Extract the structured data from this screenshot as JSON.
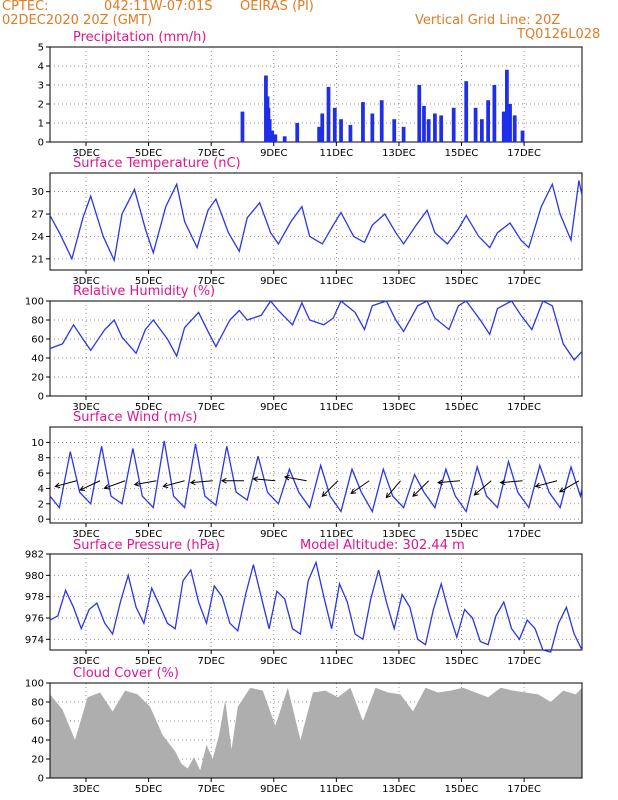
{
  "header": {
    "center_label": "CPTEC:",
    "coords": "042:11W-07:01S",
    "station": "OEIRAS (PI)",
    "run_time": "02DEC2020 20Z (GMT)",
    "grid_note": "Vertical Grid Line: 20Z",
    "model_code": "TQ0126L028"
  },
  "colors": {
    "header_text": "#e07b26",
    "panel_title": "#e4148c",
    "series_line": "#2b36e6",
    "precip_bar": "#1f2ee8",
    "cloud_fill": "#aaaaaa",
    "wind_arrow": "#000000"
  },
  "chart_data": [
    {
      "type": "bar",
      "title": "Precipitation (mm/h)",
      "x_ticks": [
        "3DEC",
        "5DEC",
        "7DEC",
        "9DEC",
        "11DEC",
        "13DEC",
        "15DEC",
        "17DEC"
      ],
      "ylim": [
        0,
        5
      ],
      "y_ticks": [
        "0",
        "1",
        "2",
        "3",
        "4",
        "5"
      ],
      "grid": true,
      "day_offsets": [
        6.15,
        6.9,
        6.95,
        6.98,
        7.02,
        7.1,
        7.2,
        7.5,
        7.9,
        8.6,
        8.7,
        8.9,
        9.1,
        9.3,
        9.6,
        10.0,
        10.3,
        10.6,
        11.0,
        11.3,
        11.8,
        11.95,
        12.1,
        12.3,
        12.5,
        12.9,
        13.3,
        13.6,
        13.8,
        14.0,
        14.2,
        14.5,
        14.6,
        14.7,
        14.85,
        15.1
      ],
      "values": [
        1.6,
        3.5,
        2.4,
        1.8,
        1.2,
        0.6,
        0.4,
        0.3,
        1.0,
        0.8,
        1.5,
        2.9,
        1.8,
        1.2,
        0.9,
        2.1,
        1.5,
        2.2,
        1.2,
        0.8,
        3.0,
        1.9,
        1.2,
        1.5,
        1.4,
        1.8,
        3.2,
        1.8,
        1.2,
        2.2,
        3.0,
        1.6,
        3.8,
        2.0,
        1.4,
        0.6
      ]
    },
    {
      "type": "line",
      "title": "Surface Temperature (nC)",
      "x_ticks": [
        "3DEC",
        "5DEC",
        "7DEC",
        "9DEC",
        "11DEC",
        "13DEC",
        "15DEC",
        "17DEC"
      ],
      "ylim": [
        19.5,
        32.5
      ],
      "y_ticks": [
        "21",
        "24",
        "27",
        "30"
      ],
      "grid": true,
      "day_offsets": [
        0,
        0.3,
        0.7,
        1.05,
        1.3,
        1.7,
        2.05,
        2.3,
        2.7,
        3.05,
        3.3,
        3.7,
        4.05,
        4.3,
        4.7,
        5.05,
        5.3,
        5.7,
        6.05,
        6.3,
        6.7,
        7.05,
        7.3,
        7.7,
        8.05,
        8.3,
        8.7,
        9.05,
        9.3,
        9.7,
        10.05,
        10.3,
        10.7,
        11.05,
        11.3,
        11.7,
        12.05,
        12.3,
        12.7,
        13.05,
        13.3,
        13.7,
        14.05,
        14.3,
        14.7,
        15.05,
        15.3,
        15.7,
        16.05,
        16.3,
        16.65,
        16.9,
        17.0
      ],
      "values": [
        26.8,
        24.5,
        21.0,
        26.5,
        29.4,
        24.0,
        20.8,
        27.0,
        30.3,
        25.0,
        21.8,
        28.0,
        31.0,
        26.0,
        22.5,
        27.5,
        29.0,
        24.5,
        22.0,
        26.5,
        28.5,
        24.5,
        23.0,
        26.0,
        28.0,
        24.0,
        23.0,
        25.5,
        27.2,
        24.0,
        23.2,
        25.5,
        27.0,
        24.5,
        23.0,
        25.5,
        27.5,
        24.5,
        23.0,
        25.0,
        26.8,
        24.0,
        22.5,
        24.5,
        25.8,
        23.5,
        22.5,
        28.0,
        31.0,
        27.0,
        23.5,
        31.5,
        29.5
      ]
    },
    {
      "type": "line",
      "title": "Relative Humidity (%)",
      "x_ticks": [
        "3DEC",
        "5DEC",
        "7DEC",
        "9DEC",
        "11DEC",
        "13DEC",
        "15DEC",
        "17DEC"
      ],
      "ylim": [
        0,
        100
      ],
      "y_ticks": [
        "0",
        "20",
        "40",
        "60",
        "80",
        "100"
      ],
      "grid": true,
      "day_offsets": [
        0,
        0.4,
        0.75,
        1.05,
        1.3,
        1.75,
        2.05,
        2.3,
        2.75,
        3.05,
        3.3,
        3.75,
        4.05,
        4.3,
        4.75,
        5.05,
        5.3,
        5.75,
        6.05,
        6.3,
        6.75,
        7.05,
        7.3,
        7.75,
        8.05,
        8.3,
        8.75,
        9.05,
        9.3,
        9.75,
        10.05,
        10.3,
        10.75,
        11.05,
        11.3,
        11.75,
        12.05,
        12.3,
        12.75,
        13.05,
        13.3,
        13.75,
        14.05,
        14.3,
        14.75,
        15.05,
        15.4,
        15.75,
        16.05,
        16.4,
        16.75,
        17.0
      ],
      "values": [
        50,
        55,
        75,
        60,
        48,
        70,
        80,
        62,
        45,
        70,
        80,
        60,
        42,
        72,
        88,
        68,
        52,
        80,
        90,
        80,
        85,
        100,
        90,
        75,
        98,
        80,
        75,
        82,
        100,
        88,
        70,
        95,
        100,
        80,
        68,
        95,
        100,
        82,
        70,
        95,
        100,
        80,
        65,
        92,
        100,
        85,
        70,
        100,
        95,
        55,
        38,
        47
      ]
    },
    {
      "type": "line",
      "title": "Surface Wind (m/s)",
      "x_ticks": [
        "3DEC",
        "5DEC",
        "7DEC",
        "9DEC",
        "11DEC",
        "13DEC",
        "15DEC",
        "17DEC"
      ],
      "ylim": [
        -0.5,
        12
      ],
      "y_ticks": [
        "0",
        "2",
        "4",
        "6",
        "8",
        "10"
      ],
      "grid": true,
      "day_offsets": [
        0,
        0.3,
        0.65,
        0.95,
        1.3,
        1.65,
        1.95,
        2.3,
        2.65,
        2.95,
        3.3,
        3.65,
        3.95,
        4.3,
        4.65,
        4.95,
        5.3,
        5.65,
        5.95,
        6.3,
        6.65,
        6.95,
        7.3,
        7.65,
        7.95,
        8.3,
        8.65,
        8.95,
        9.3,
        9.65,
        9.95,
        10.3,
        10.65,
        10.95,
        11.3,
        11.65,
        11.95,
        12.3,
        12.65,
        12.95,
        13.3,
        13.65,
        13.95,
        14.3,
        14.65,
        14.95,
        15.3,
        15.65,
        15.95,
        16.3,
        16.65,
        16.95,
        17.0
      ],
      "values": [
        3.0,
        1.5,
        8.8,
        3.5,
        2.0,
        9.5,
        3.0,
        2.0,
        9.2,
        3.0,
        1.5,
        10.2,
        3.0,
        1.5,
        9.8,
        3.0,
        1.8,
        9.5,
        3.5,
        2.5,
        8.2,
        3.5,
        2.0,
        6.5,
        3.5,
        1.5,
        7.0,
        3.0,
        1.0,
        6.5,
        3.5,
        1.0,
        6.5,
        3.0,
        1.5,
        5.8,
        3.5,
        1.5,
        6.5,
        3.0,
        1.0,
        6.8,
        3.0,
        1.5,
        7.5,
        3.5,
        1.5,
        7.0,
        3.5,
        1.5,
        6.8,
        3.0,
        4.0
      ],
      "wind_vectors": [
        {
          "day_offset": 0.85,
          "dir_deg": 255,
          "speed": 4.5
        },
        {
          "day_offset": 1.6,
          "dir_deg": 245,
          "speed": 5.0
        },
        {
          "day_offset": 2.4,
          "dir_deg": 250,
          "speed": 4.6
        },
        {
          "day_offset": 3.4,
          "dir_deg": 260,
          "speed": 5.2
        },
        {
          "day_offset": 4.3,
          "dir_deg": 255,
          "speed": 5.0
        },
        {
          "day_offset": 5.2,
          "dir_deg": 265,
          "speed": 4.8
        },
        {
          "day_offset": 6.2,
          "dir_deg": 270,
          "speed": 4.5
        },
        {
          "day_offset": 7.2,
          "dir_deg": 275,
          "speed": 4.3
        },
        {
          "day_offset": 8.2,
          "dir_deg": 280,
          "speed": 4.0
        },
        {
          "day_offset": 9.2,
          "dir_deg": 225,
          "speed": 3.0
        },
        {
          "day_offset": 10.2,
          "dir_deg": 235,
          "speed": 3.2
        },
        {
          "day_offset": 11.2,
          "dir_deg": 220,
          "speed": 2.8
        },
        {
          "day_offset": 12.1,
          "dir_deg": 225,
          "speed": 3.0
        },
        {
          "day_offset": 13.1,
          "dir_deg": 265,
          "speed": 4.0
        },
        {
          "day_offset": 14.1,
          "dir_deg": 230,
          "speed": 3.5
        },
        {
          "day_offset": 15.1,
          "dir_deg": 265,
          "speed": 4.2
        },
        {
          "day_offset": 16.2,
          "dir_deg": 255,
          "speed": 4.5
        },
        {
          "day_offset": 16.9,
          "dir_deg": 240,
          "speed": 3.5
        }
      ]
    },
    {
      "type": "line",
      "title": "Surface Pressure (hPa)",
      "annotation": "Model Altitude: 302.44 m",
      "x_ticks": [
        "3DEC",
        "5DEC",
        "7DEC",
        "9DEC",
        "11DEC",
        "13DEC",
        "15DEC",
        "17DEC"
      ],
      "ylim": [
        973,
        982
      ],
      "y_ticks": [
        "974",
        "976",
        "978",
        "980",
        "982"
      ],
      "grid": true,
      "day_offsets": [
        0,
        0.25,
        0.5,
        0.75,
        1.0,
        1.25,
        1.5,
        1.75,
        2.0,
        2.25,
        2.5,
        2.75,
        3.0,
        3.25,
        3.5,
        3.75,
        4.0,
        4.25,
        4.5,
        4.75,
        5.0,
        5.25,
        5.5,
        5.75,
        6.0,
        6.25,
        6.5,
        6.75,
        7.0,
        7.25,
        7.5,
        7.75,
        8.0,
        8.25,
        8.5,
        8.75,
        9.0,
        9.25,
        9.5,
        9.75,
        10.0,
        10.25,
        10.5,
        10.75,
        11.0,
        11.25,
        11.5,
        11.75,
        12.0,
        12.25,
        12.5,
        12.75,
        13.0,
        13.25,
        13.5,
        13.75,
        14.0,
        14.25,
        14.5,
        14.75,
        15.0,
        15.25,
        15.5,
        15.75,
        16.0,
        16.25,
        16.5,
        16.75,
        17.0
      ],
      "values": [
        975.8,
        976.2,
        978.6,
        977.0,
        975.0,
        976.8,
        977.4,
        975.5,
        974.5,
        977.5,
        980.0,
        977.0,
        975.5,
        978.8,
        977.2,
        975.5,
        975.0,
        979.5,
        980.5,
        977.5,
        975.5,
        979.0,
        978.0,
        975.5,
        974.8,
        978.2,
        981.0,
        978.0,
        975.0,
        978.5,
        977.8,
        975.0,
        974.5,
        979.5,
        981.2,
        978.0,
        975.0,
        979.2,
        977.5,
        974.5,
        974.0,
        977.8,
        980.5,
        977.5,
        975.0,
        978.2,
        977.0,
        974.0,
        973.5,
        976.8,
        979.2,
        976.5,
        974.2,
        976.8,
        976.0,
        973.8,
        973.5,
        976.2,
        977.5,
        975.0,
        974.0,
        975.8,
        975.0,
        973.0,
        972.8,
        975.5,
        977.0,
        974.5,
        973.0
      ]
    },
    {
      "type": "area",
      "title": "Cloud Cover (%)",
      "x_ticks": [
        "3DEC",
        "5DEC",
        "7DEC",
        "9DEC",
        "11DEC",
        "13DEC",
        "15DEC",
        "17DEC"
      ],
      "ylim": [
        0,
        100
      ],
      "y_ticks": [
        "0",
        "20",
        "40",
        "60",
        "80",
        "100"
      ],
      "grid": true,
      "day_offsets": [
        0,
        0.4,
        0.8,
        1.2,
        1.6,
        2.0,
        2.4,
        2.8,
        3.2,
        3.6,
        4.0,
        4.2,
        4.4,
        4.6,
        4.8,
        5.0,
        5.2,
        5.4,
        5.6,
        5.8,
        6.0,
        6.4,
        6.8,
        7.2,
        7.6,
        8.0,
        8.4,
        8.8,
        9.2,
        9.6,
        10.0,
        10.4,
        10.8,
        11.2,
        11.6,
        12.0,
        12.4,
        12.8,
        13.2,
        13.6,
        14.0,
        14.4,
        14.8,
        15.2,
        15.6,
        16.0,
        16.4,
        16.8,
        17.0
      ],
      "values": [
        88,
        72,
        40,
        85,
        90,
        70,
        92,
        88,
        75,
        45,
        28,
        15,
        10,
        22,
        8,
        35,
        20,
        45,
        82,
        30,
        75,
        95,
        92,
        55,
        95,
        40,
        90,
        92,
        85,
        95,
        60,
        95,
        90,
        88,
        70,
        95,
        90,
        92,
        95,
        90,
        85,
        95,
        92,
        90,
        88,
        80,
        92,
        88,
        95
      ]
    }
  ]
}
